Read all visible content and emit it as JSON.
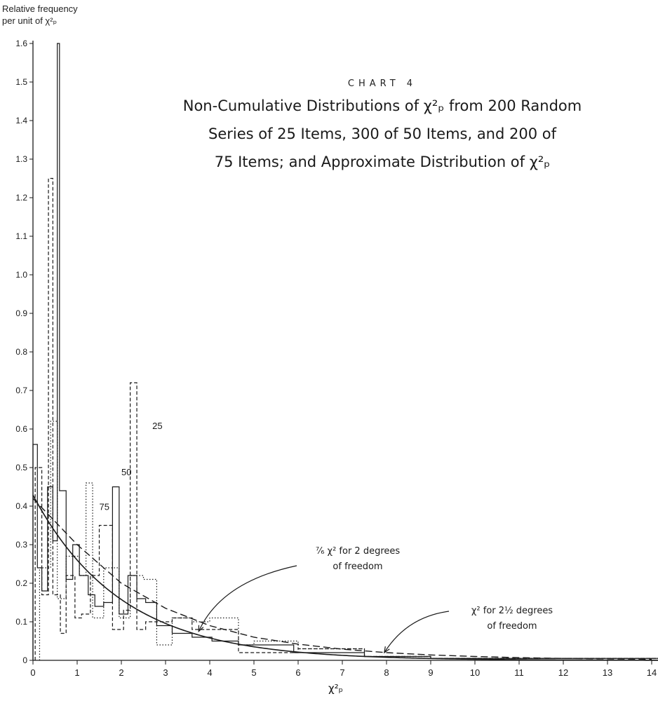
{
  "chart_data": {
    "type": "line",
    "chart_label": "CHART 4",
    "title_lines": [
      "Non-Cumulative Distributions of χ²ₚ from 200 Random",
      "Series of 25 Items, 300 of 50 Items, and 200 of",
      "75 Items; and Approximate Distribution of χ²ₚ"
    ],
    "ylabel_lines": [
      "Relative frequency",
      "per unit of χ²ₚ"
    ],
    "xlabel": "χ²ₚ",
    "xlim": [
      0,
      14
    ],
    "ylim": [
      0,
      1.6
    ],
    "x_ticks": [
      0,
      1,
      2,
      3,
      4,
      5,
      6,
      7,
      8,
      9,
      10,
      11,
      12,
      13,
      14
    ],
    "x_tick_labels": [
      "0",
      "1",
      "2",
      "3",
      "4",
      "5",
      "6",
      "7",
      "8",
      "9",
      "10",
      "11",
      "12",
      "13",
      "14"
    ],
    "y_ticks": [
      0,
      0.1,
      0.2,
      0.3,
      0.4,
      0.5,
      0.6,
      0.7,
      0.8,
      0.9,
      1.0,
      1.1,
      1.2,
      1.3,
      1.4,
      1.5,
      1.6
    ],
    "y_tick_labels": [
      "0",
      "0.1",
      "0.2",
      "0.3",
      "0.4",
      "0.5",
      "0.6",
      "0.7",
      "0.8",
      "0.9",
      "1.0",
      "1.1",
      "1.2",
      "1.3",
      "1.4",
      "1.5",
      "1.6"
    ],
    "series": [
      {
        "name": "50",
        "style": "solid",
        "edges": [
          0,
          0.1,
          0.2,
          0.33,
          0.45,
          0.55,
          0.6,
          0.75,
          0.9,
          1.05,
          1.25,
          1.4,
          1.6,
          1.8,
          1.95,
          2.15,
          2.35,
          2.55,
          2.8,
          3.15,
          3.6,
          4.05,
          4.65,
          5.9,
          7.5,
          9.0,
          14.2
        ],
        "values": [
          0.56,
          0.24,
          0.18,
          0.45,
          0.31,
          1.6,
          0.44,
          0.21,
          0.3,
          0.22,
          0.17,
          0.14,
          0.15,
          0.45,
          0.12,
          0.22,
          0.16,
          0.15,
          0.09,
          0.07,
          0.06,
          0.05,
          0.04,
          0.02,
          0.01,
          0.005
        ]
      },
      {
        "name": "25",
        "style": "dashed",
        "edges": [
          0.05,
          0.2,
          0.35,
          0.45,
          0.62,
          0.75,
          0.95,
          1.1,
          1.3,
          1.5,
          1.8,
          2.05,
          2.2,
          2.35,
          2.55,
          3.15,
          3.6,
          4.2,
          4.65,
          6.0,
          7.5,
          9.0,
          14.2
        ],
        "values": [
          0.5,
          0.17,
          1.25,
          0.17,
          0.07,
          0.22,
          0.11,
          0.12,
          0.22,
          0.35,
          0.08,
          0.13,
          0.72,
          0.08,
          0.1,
          0.11,
          0.08,
          0.08,
          0.02,
          0.03,
          0.01,
          0.005
        ]
      },
      {
        "name": "75",
        "style": "dotted",
        "edges": [
          0.15,
          0.4,
          0.55,
          0.75,
          1.05,
          1.2,
          1.35,
          1.6,
          1.95,
          2.2,
          2.5,
          2.8,
          3.15,
          3.6,
          4.0,
          4.65,
          5.0,
          6.0,
          7.5,
          9.0,
          14.2
        ],
        "values": [
          0.24,
          0.62,
          0.16,
          0.27,
          0.22,
          0.46,
          0.11,
          0.24,
          0.11,
          0.22,
          0.21,
          0.04,
          0.11,
          0.1,
          0.11,
          0.04,
          0.05,
          0.03,
          0.01,
          0.005
        ]
      },
      {
        "name": "7/6 χ² for 2 degrees of freedom",
        "style": "curve",
        "scale": 0.4286,
        "rate": 0.5
      },
      {
        "name": "χ² for 2½ degrees of freedom",
        "style": "dashed-curve",
        "x": [
          0,
          1,
          2,
          3,
          4,
          5,
          6,
          7,
          8,
          9,
          10,
          11,
          12,
          13,
          14
        ],
        "values": [
          0.42,
          0.3,
          0.2,
          0.135,
          0.09,
          0.06,
          0.042,
          0.029,
          0.02,
          0.014,
          0.01,
          0.007,
          0.005,
          0.004,
          0.003
        ]
      }
    ],
    "series_labels": [
      {
        "text": "50",
        "x": 2.0,
        "y": 0.48
      },
      {
        "text": "25",
        "x": 2.7,
        "y": 0.6
      },
      {
        "text": "75",
        "x": 1.5,
        "y": 0.39
      }
    ],
    "annotations": [
      {
        "line1": "⁷⁄₆ χ² for 2 degrees",
        "line2": "of freedom",
        "target_x": 3.75,
        "target_y": 0.075
      },
      {
        "line1": "χ² for 2½ degrees",
        "line2": "of freedom",
        "target_x": 7.95,
        "target_y": 0.02
      }
    ]
  }
}
